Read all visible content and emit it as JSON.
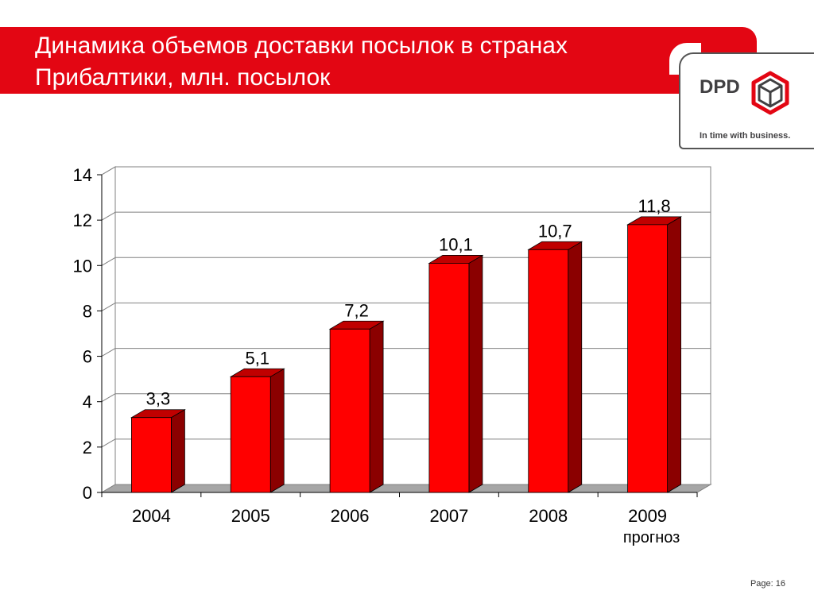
{
  "slide": {
    "title": "Динамика объемов доставки посылок в странах Прибалтики, млн. посылок",
    "page_label": "Page: 16"
  },
  "logo": {
    "brand": "DPD",
    "tagline": "In time with business.",
    "icon": "cube-icon"
  },
  "colors": {
    "accent": "#e30613",
    "bar_front": "#ff0000",
    "bar_side": "#8b0000",
    "bar_top": "#c00000",
    "floor": "#a6a6a6"
  },
  "chart_data": {
    "type": "bar",
    "categories": [
      "2004",
      "2005",
      "2006",
      "2007",
      "2008",
      "2009"
    ],
    "category_notes": [
      "",
      "",
      "",
      "",
      "",
      "прогноз"
    ],
    "values": [
      3.3,
      5.1,
      7.2,
      10.1,
      10.7,
      11.8
    ],
    "data_labels": [
      "3,3",
      "5,1",
      "7,2",
      "10,1",
      "10,7",
      "11,8"
    ],
    "ylim": [
      0,
      14
    ],
    "yticks": [
      0,
      2,
      4,
      6,
      8,
      10,
      12,
      14
    ],
    "grid": true,
    "legend": "none",
    "style": "3d"
  }
}
